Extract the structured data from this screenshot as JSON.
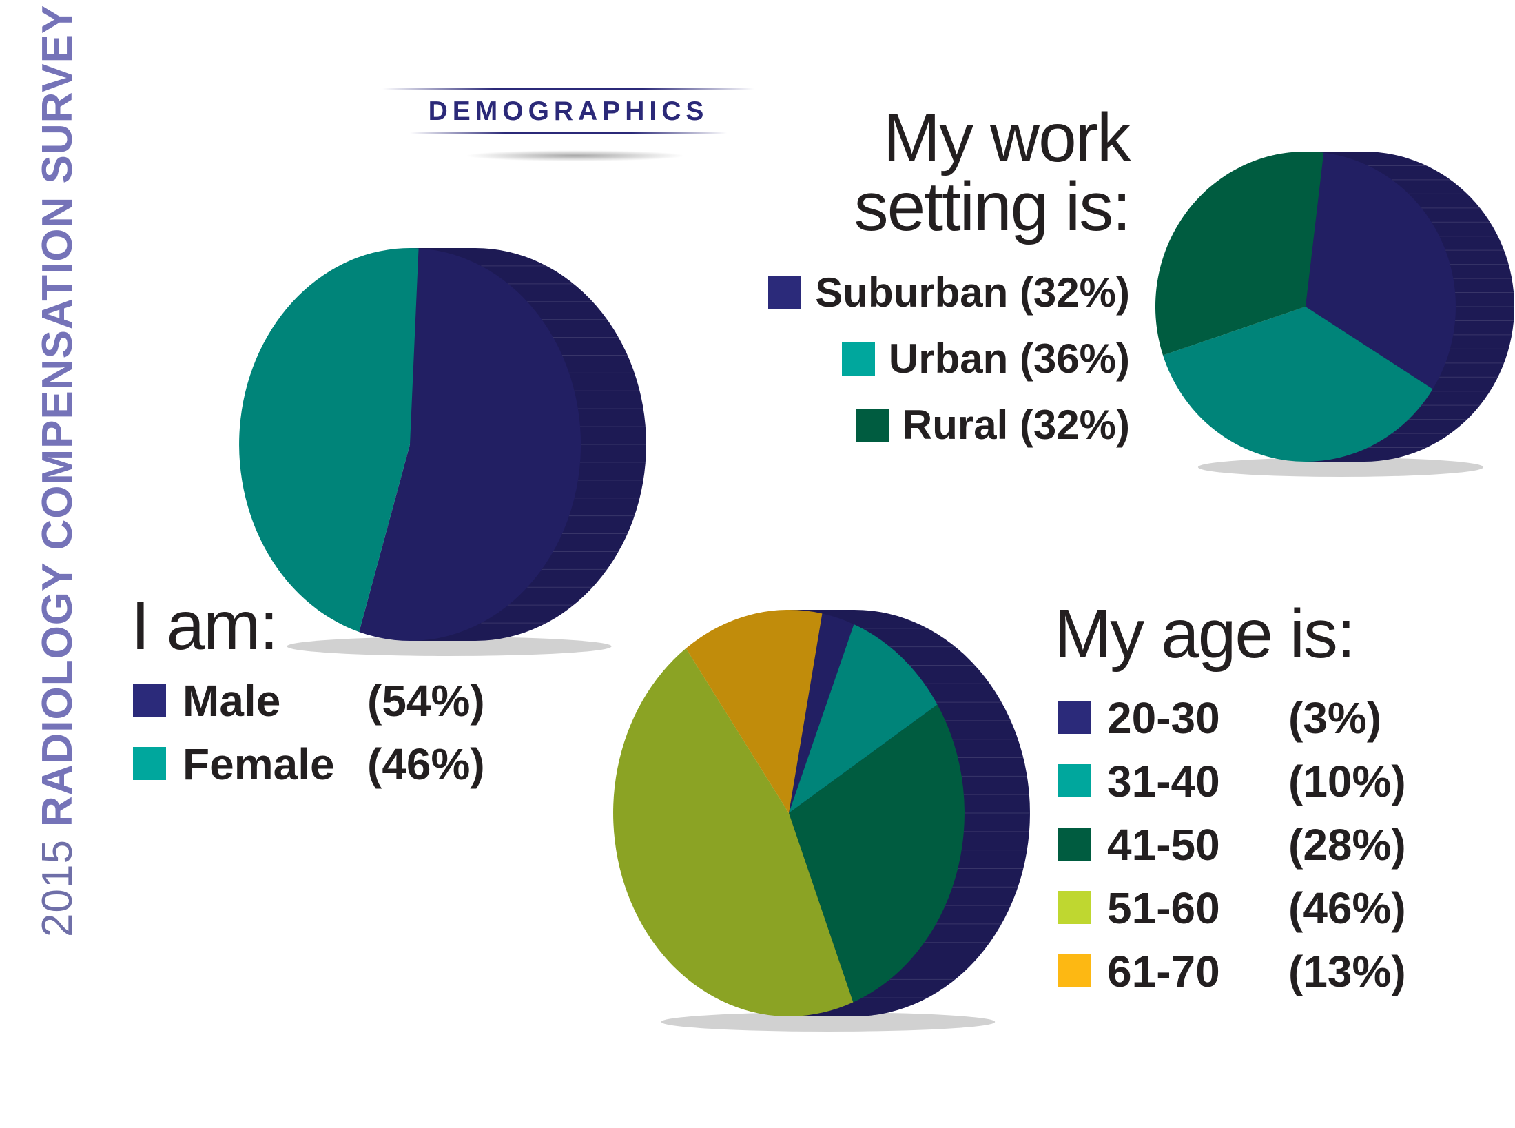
{
  "side_title": {
    "year": "2015",
    "title": "RADIOLOGY COMPENSATION SURVEY"
  },
  "section_title": "DEMOGRAPHICS",
  "colors": {
    "navy": "#262466",
    "teal": "#008479",
    "bright_teal": "#00a79d",
    "dark_green": "#005c40",
    "olive": "#8ba324",
    "lime": "#bfd730",
    "gold": "#c18c0b",
    "yellow": "#fdb813",
    "text": "#231f20"
  },
  "chart_data": [
    {
      "type": "pie",
      "title": "I am:",
      "categories": [
        "Male",
        "Female"
      ],
      "values": [
        54,
        46
      ],
      "labels": [
        "(54%)",
        "(46%)"
      ],
      "legend_colors": [
        "#2b2a7a",
        "#00a79d"
      ],
      "slice_colors": [
        "#221f63",
        "#008479"
      ],
      "legend": "left"
    },
    {
      "type": "pie",
      "title": "My work setting is:",
      "title_lines": [
        "My work",
        "setting is:"
      ],
      "categories": [
        "Suburban",
        "Urban",
        "Rural"
      ],
      "values": [
        32,
        36,
        32
      ],
      "labels": [
        "Suburban (32%)",
        "Urban (36%)",
        "Rural (32%)"
      ],
      "legend_colors": [
        "#2b2a7a",
        "#00a79d",
        "#005c40"
      ],
      "slice_colors": [
        "#221f63",
        "#008479",
        "#005c40"
      ],
      "legend": "left"
    },
    {
      "type": "pie",
      "title": "My age is:",
      "categories": [
        "20-30",
        "31-40",
        "41-50",
        "51-60",
        "61-70"
      ],
      "values": [
        3,
        10,
        28,
        46,
        13
      ],
      "labels": [
        "(3%)",
        "(10%)",
        "(28%)",
        "(46%)",
        "(13%)"
      ],
      "legend_colors": [
        "#2b2a7a",
        "#00a79d",
        "#005c40",
        "#bfd730",
        "#fdb813"
      ],
      "slice_colors": [
        "#221f63",
        "#008479",
        "#005c40",
        "#8ba324",
        "#c18c0b"
      ],
      "legend": "right"
    }
  ]
}
